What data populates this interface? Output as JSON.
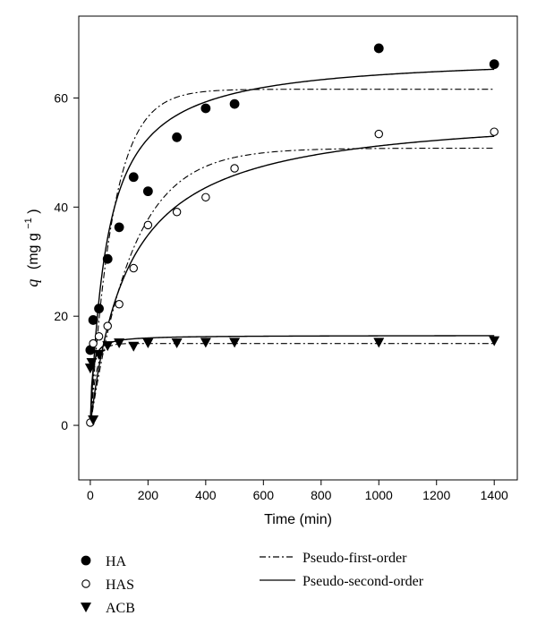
{
  "chart_data": {
    "type": "scatter",
    "xlabel": "Time (min)",
    "ylabel_var": "q",
    "ylabel_unit": "(mg g",
    "ylabel_sup": "−1",
    "ylabel_close": ")",
    "xlim": [
      -40,
      1480
    ],
    "ylim": [
      -10,
      75
    ],
    "xticks": [
      0,
      200,
      400,
      600,
      800,
      1000,
      1200,
      1400
    ],
    "yticks": [
      0,
      20,
      40,
      60
    ],
    "grid": false,
    "series": [
      {
        "name": "HA",
        "marker": "filled-circle",
        "points": [
          {
            "x": 0,
            "y": 13.8
          },
          {
            "x": 10,
            "y": 19.3
          },
          {
            "x": 30,
            "y": 21.4
          },
          {
            "x": 60,
            "y": 30.5
          },
          {
            "x": 100,
            "y": 36.3
          },
          {
            "x": 150,
            "y": 45.5
          },
          {
            "x": 200,
            "y": 42.9
          },
          {
            "x": 300,
            "y": 52.8
          },
          {
            "x": 400,
            "y": 58.1
          },
          {
            "x": 500,
            "y": 58.9
          },
          {
            "x": 1000,
            "y": 69.1
          },
          {
            "x": 1400,
            "y": 66.2
          }
        ],
        "pfo": {
          "qe": 61.6,
          "k1": 0.0125
        },
        "pso": {
          "qe": 68.0,
          "k2": 0.00025
        }
      },
      {
        "name": "HAS",
        "marker": "open-circle",
        "points": [
          {
            "x": 0,
            "y": 0.5
          },
          {
            "x": 10,
            "y": 15.0
          },
          {
            "x": 30,
            "y": 16.3
          },
          {
            "x": 60,
            "y": 18.2
          },
          {
            "x": 100,
            "y": 22.2
          },
          {
            "x": 150,
            "y": 28.8
          },
          {
            "x": 200,
            "y": 36.7
          },
          {
            "x": 300,
            "y": 39.1
          },
          {
            "x": 400,
            "y": 41.8
          },
          {
            "x": 500,
            "y": 47.1
          },
          {
            "x": 1000,
            "y": 53.4
          },
          {
            "x": 1400,
            "y": 53.8
          }
        ],
        "pfo": {
          "qe": 50.8,
          "k1": 0.0068
        },
        "pso": {
          "qe": 58.0,
          "k2": 0.00013
        }
      },
      {
        "name": "ACB",
        "marker": "filled-triangle-down",
        "points": [
          {
            "x": 0,
            "y": 10.5
          },
          {
            "x": 5,
            "y": 11.5
          },
          {
            "x": 10,
            "y": 1.0
          },
          {
            "x": 30,
            "y": 13.0
          },
          {
            "x": 60,
            "y": 14.6
          },
          {
            "x": 100,
            "y": 15.1
          },
          {
            "x": 150,
            "y": 14.5
          },
          {
            "x": 200,
            "y": 15.1
          },
          {
            "x": 300,
            "y": 15.1
          },
          {
            "x": 400,
            "y": 15.2
          },
          {
            "x": 500,
            "y": 15.2
          },
          {
            "x": 1000,
            "y": 15.2
          },
          {
            "x": 1400,
            "y": 15.5
          }
        ],
        "pfo": {
          "qe": 15.0,
          "k1": 0.05
        },
        "pso": {
          "qe": 16.5,
          "k2": 0.01
        }
      }
    ],
    "legend_markers": [
      {
        "name": "HA",
        "marker": "filled-circle"
      },
      {
        "name": "HAS",
        "marker": "open-circle"
      },
      {
        "name": "ACB",
        "marker": "filled-triangle-down"
      }
    ],
    "legend_lines": [
      {
        "name": "Pseudo-first-order",
        "style": "dash-dot"
      },
      {
        "name": "Pseudo-second-order",
        "style": "solid"
      }
    ],
    "legend_placement": "bottom"
  }
}
